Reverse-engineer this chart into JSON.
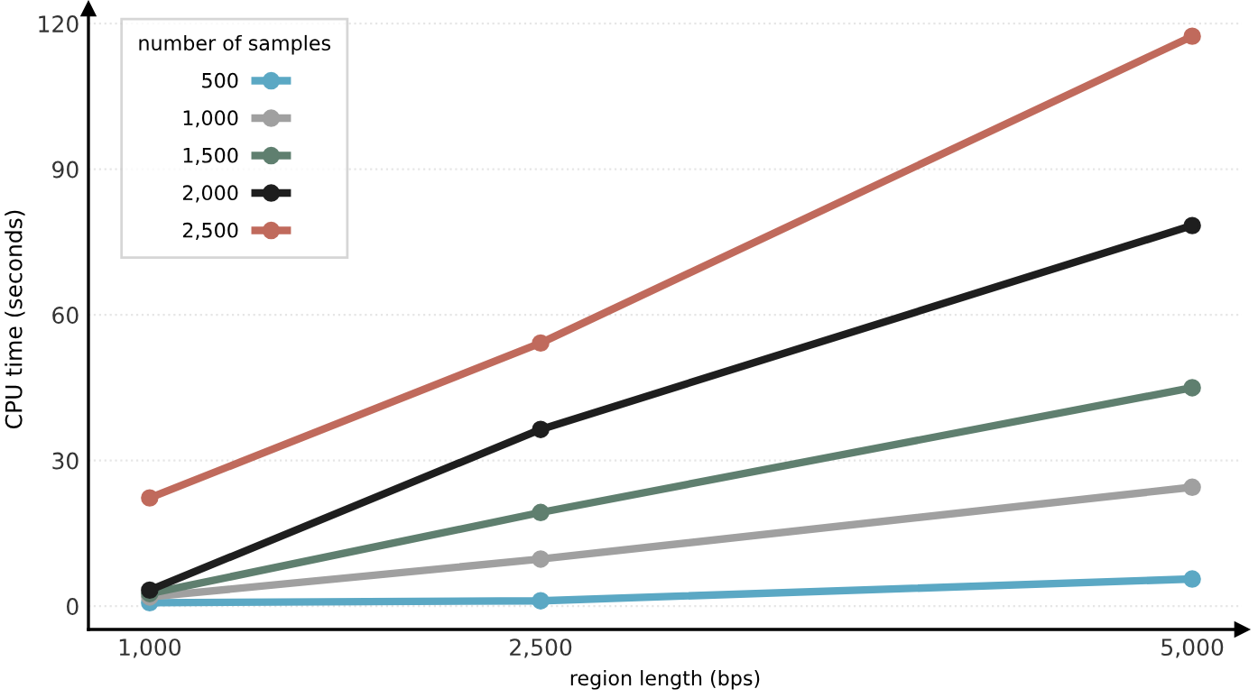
{
  "chart_data": {
    "type": "line",
    "xlabel": "region length (bps)",
    "ylabel": "CPU time (seconds)",
    "legend_title": "number of samples",
    "x": [
      1000,
      2500,
      5000
    ],
    "xlim": [
      765,
      5190
    ],
    "xticks": [
      {
        "value": 1000,
        "label": "1,000"
      },
      {
        "value": 2500,
        "label": "2,500"
      },
      {
        "value": 5000,
        "label": "5,000"
      }
    ],
    "ylim": [
      -4.8,
      123
    ],
    "yticks": [
      0,
      30,
      60,
      90,
      120
    ],
    "grid": "y",
    "legend": "top left",
    "marker": "circle",
    "line_style": "solid",
    "series": [
      {
        "name": "500",
        "color": "#5ba8c4",
        "values": [
          0.7,
          1.1,
          5.6
        ]
      },
      {
        "name": "1,000",
        "color": "#a0a0a0",
        "values": [
          1.9,
          9.7,
          24.5
        ]
      },
      {
        "name": "1,500",
        "color": "#5f7f6f",
        "values": [
          2.6,
          19.3,
          45
        ]
      },
      {
        "name": "2,000",
        "color": "#1e1e1e",
        "values": [
          3.3,
          36.4,
          78.4
        ]
      },
      {
        "name": "2,500",
        "color": "#c06a5c",
        "values": [
          22.3,
          54.2,
          117.4
        ]
      }
    ]
  }
}
